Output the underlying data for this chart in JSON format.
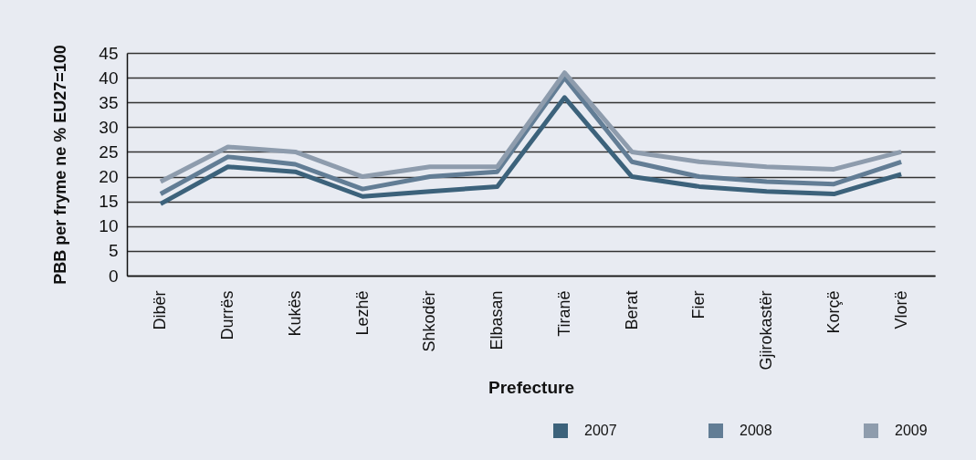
{
  "chart_data": {
    "type": "line",
    "xlabel": "Prefecture",
    "ylabel": "PBB per fryme ne % EU27=100",
    "categories": [
      "Dibër",
      "Durrës",
      "Kukës",
      "Lezhë",
      "Shkodër",
      "Elbasan",
      "Tiranë",
      "Berat",
      "Fier",
      "Gjirokastër",
      "Korçë",
      "Vlorë"
    ],
    "series": [
      {
        "name": "2007",
        "color": "#3c627b",
        "values": [
          14.5,
          22,
          21,
          16,
          17,
          18,
          36,
          20,
          18,
          17,
          16.5,
          20.5
        ]
      },
      {
        "name": "2008",
        "color": "#627d95",
        "values": [
          16.5,
          24,
          22.5,
          17.5,
          20,
          21,
          40,
          23,
          20,
          19,
          18.5,
          23
        ]
      },
      {
        "name": "2009",
        "color": "#8e9cad",
        "values": [
          19,
          26,
          25,
          20,
          22,
          22,
          41,
          25,
          23,
          22,
          21.5,
          25
        ]
      }
    ],
    "ylim": [
      0,
      45
    ],
    "yticks": [
      0,
      5,
      10,
      15,
      20,
      25,
      30,
      35,
      40,
      45
    ],
    "grid": "y",
    "legend": "bottom right",
    "line_style": "solid"
  }
}
